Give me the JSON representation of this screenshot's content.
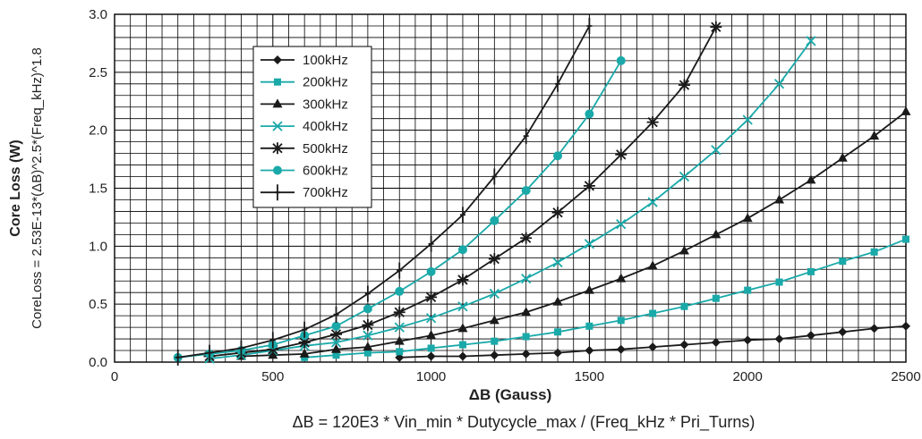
{
  "chart_data": {
    "type": "line",
    "xlabel": "ΔB (Gauss)",
    "ylabel": "Core Loss (W)",
    "ylabel_formula": "CoreLoss = 2.53E-13*(ΔB)^2.5*(Freq_kHz)^1.8",
    "formula": "ΔB = 120E3 * Vin_min * Dutycycle_max / (Freq_kHz * Pri_Turns)",
    "xlim": [
      0,
      2500
    ],
    "ylim": [
      0,
      3.0
    ],
    "x_ticks": [
      "0",
      "500",
      "1000",
      "1500",
      "2000",
      "2500"
    ],
    "y_ticks": [
      "0.0",
      "0.5",
      "1.0",
      "1.5",
      "2.0",
      "2.5",
      "3.0"
    ],
    "grid": true,
    "legend_position": "top-left",
    "colors": {
      "black": "#1a1a1a",
      "teal": "#1aa9a9"
    },
    "series": [
      {
        "name": "100kHz",
        "marker": "diamond",
        "color": "#1a1a1a",
        "x": [
          900,
          1000,
          1100,
          1200,
          1300,
          1400,
          1500,
          1600,
          1700,
          1800,
          1900,
          2000,
          2100,
          2200,
          2300,
          2400,
          2500
        ],
        "y": [
          0.04,
          0.05,
          0.05,
          0.06,
          0.07,
          0.08,
          0.1,
          0.11,
          0.13,
          0.15,
          0.17,
          0.19,
          0.2,
          0.23,
          0.26,
          0.29,
          0.31
        ]
      },
      {
        "name": "200kHz",
        "marker": "square",
        "color": "#1aa9a9",
        "x": [
          600,
          700,
          800,
          900,
          1000,
          1100,
          1200,
          1300,
          1400,
          1500,
          1600,
          1700,
          1800,
          1900,
          2000,
          2100,
          2200,
          2300,
          2400,
          2500
        ],
        "y": [
          0.04,
          0.06,
          0.08,
          0.09,
          0.12,
          0.15,
          0.18,
          0.22,
          0.26,
          0.31,
          0.36,
          0.42,
          0.48,
          0.55,
          0.62,
          0.69,
          0.78,
          0.87,
          0.95,
          1.06
        ]
      },
      {
        "name": "300kHz",
        "marker": "triangle",
        "color": "#1a1a1a",
        "x": [
          400,
          500,
          600,
          700,
          800,
          900,
          1000,
          1100,
          1200,
          1300,
          1400,
          1500,
          1600,
          1700,
          1800,
          1900,
          2000,
          2100,
          2200,
          2300,
          2400,
          2500
        ],
        "y": [
          0.05,
          0.06,
          0.07,
          0.11,
          0.13,
          0.18,
          0.23,
          0.29,
          0.36,
          0.43,
          0.52,
          0.62,
          0.72,
          0.83,
          0.96,
          1.1,
          1.24,
          1.4,
          1.57,
          1.76,
          1.95,
          2.16
        ]
      },
      {
        "name": "400kHz",
        "marker": "x",
        "color": "#1aa9a9",
        "x": [
          300,
          400,
          500,
          600,
          700,
          800,
          900,
          1000,
          1100,
          1200,
          1300,
          1400,
          1500,
          1600,
          1700,
          1800,
          1900,
          2000,
          2100,
          2200
        ],
        "y": [
          0.03,
          0.06,
          0.1,
          0.14,
          0.17,
          0.23,
          0.3,
          0.38,
          0.48,
          0.59,
          0.72,
          0.86,
          1.02,
          1.19,
          1.38,
          1.6,
          1.83,
          2.09,
          2.4,
          2.77
        ]
      },
      {
        "name": "500kHz",
        "marker": "star",
        "color": "#1a1a1a",
        "x": [
          300,
          400,
          500,
          600,
          700,
          800,
          900,
          1000,
          1100,
          1200,
          1300,
          1400,
          1500,
          1600,
          1700,
          1800,
          1900
        ],
        "y": [
          0.05,
          0.08,
          0.11,
          0.17,
          0.24,
          0.32,
          0.43,
          0.56,
          0.71,
          0.89,
          1.07,
          1.29,
          1.52,
          1.79,
          2.07,
          2.39,
          2.89
        ]
      },
      {
        "name": "600kHz",
        "marker": "circle",
        "color": "#1aa9a9",
        "x": [
          200,
          300,
          400,
          500,
          600,
          700,
          800,
          900,
          1000,
          1100,
          1200,
          1300,
          1400,
          1500,
          1600
        ],
        "y": [
          0.04,
          0.07,
          0.1,
          0.15,
          0.23,
          0.31,
          0.46,
          0.61,
          0.78,
          0.97,
          1.22,
          1.48,
          1.78,
          2.14,
          2.6
        ]
      },
      {
        "name": "700kHz",
        "marker": "plus",
        "color": "#1a1a1a",
        "x": [
          200,
          300,
          400,
          500,
          600,
          700,
          800,
          900,
          1000,
          1100,
          1200,
          1300,
          1400,
          1500
        ],
        "y": [
          0.04,
          0.08,
          0.12,
          0.19,
          0.28,
          0.41,
          0.59,
          0.79,
          1.02,
          1.27,
          1.6,
          1.95,
          2.4,
          2.9
        ]
      }
    ]
  }
}
